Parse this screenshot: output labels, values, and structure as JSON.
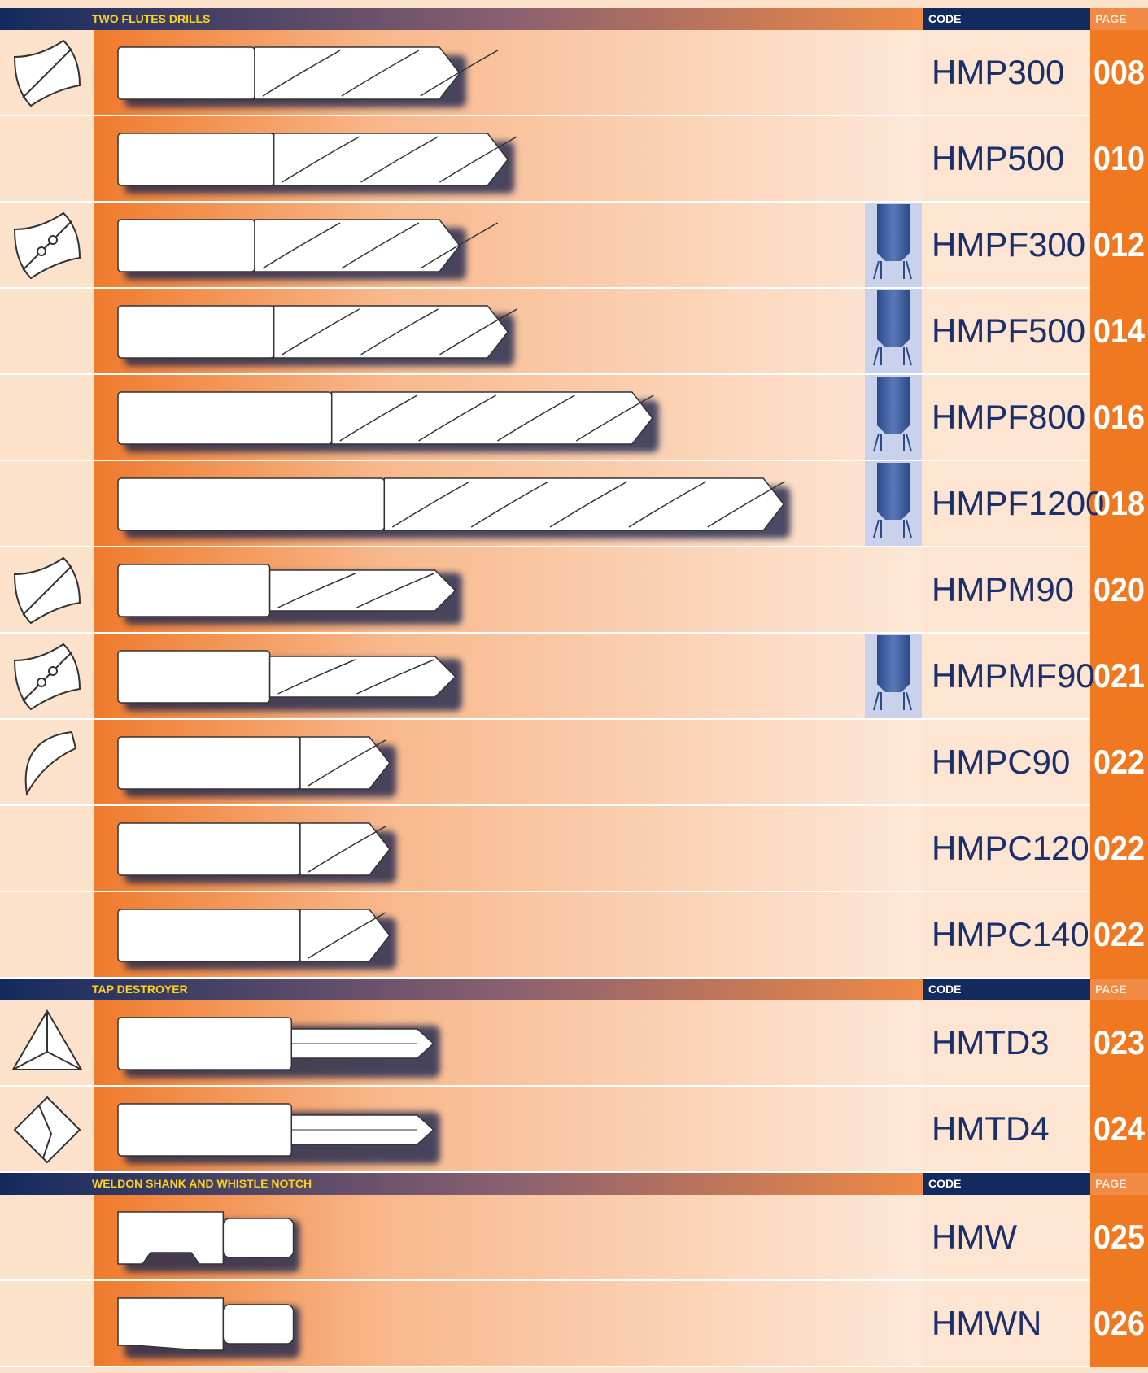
{
  "sections": [
    {
      "title": "TWO FLUTES DRILLS",
      "code_header": "CODE",
      "page_header": "PAGE",
      "rows": [
        {
          "code": "HMP300",
          "page": "008"
        },
        {
          "code": "HMP500",
          "page": "010"
        },
        {
          "code": "HMPF300",
          "page": "012"
        },
        {
          "code": "HMPF500",
          "page": "014"
        },
        {
          "code": "HMPF800",
          "page": "016"
        },
        {
          "code": "HMPF1200",
          "page": "018"
        },
        {
          "code": "HMPM90",
          "page": "020"
        },
        {
          "code": "HMPMF90",
          "page": "021"
        },
        {
          "code": "HMPC90",
          "page": "022"
        },
        {
          "code": "HMPC120",
          "page": "022"
        },
        {
          "code": "HMPC140",
          "page": "022"
        }
      ]
    },
    {
      "title": "TAP DESTROYER",
      "code_header": "CODE",
      "page_header": "PAGE",
      "rows": [
        {
          "code": "HMTD3",
          "page": "023"
        },
        {
          "code": "HMTD4",
          "page": "024"
        }
      ]
    },
    {
      "title": "WELDON SHANK AND WHISTLE NOTCH",
      "code_header": "CODE",
      "page_header": "PAGE",
      "rows": [
        {
          "code": "HMW",
          "page": "025"
        },
        {
          "code": "HMWN",
          "page": "026"
        }
      ]
    }
  ]
}
